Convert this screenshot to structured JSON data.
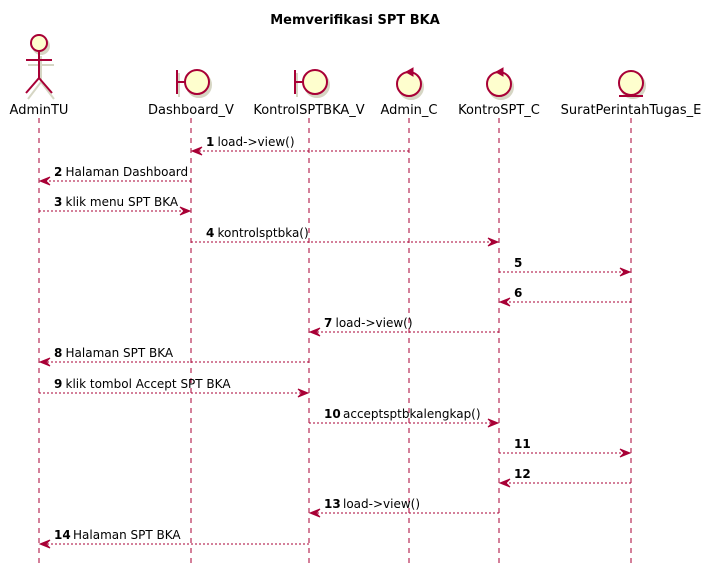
{
  "diagram": {
    "title": "Memverifikasi SPT BKA",
    "participants": [
      {
        "id": "AdminTU",
        "label": "AdminTU",
        "kind": "actor"
      },
      {
        "id": "Dashboard_V",
        "label": "Dashboard_V",
        "kind": "boundary"
      },
      {
        "id": "KontrolSPTBKA_V",
        "label": "KontrolSPTBKA_V",
        "kind": "boundary"
      },
      {
        "id": "Admin_C",
        "label": "Admin_C",
        "kind": "control"
      },
      {
        "id": "KontroSPT_C",
        "label": "KontroSPT_C",
        "kind": "control"
      },
      {
        "id": "SuratPerintahTugas_E",
        "label": "SuratPerintahTugas_E",
        "kind": "entity"
      }
    ],
    "messages": [
      {
        "num": "1",
        "text": "load->view()",
        "from": "Admin_C",
        "to": "Dashboard_V"
      },
      {
        "num": "2",
        "text": "Halaman Dashboard",
        "from": "Dashboard_V",
        "to": "AdminTU"
      },
      {
        "num": "3",
        "text": "klik menu SPT BKA",
        "from": "AdminTU",
        "to": "Dashboard_V"
      },
      {
        "num": "4",
        "text": "kontrolsptbka()",
        "from": "Dashboard_V",
        "to": "KontroSPT_C"
      },
      {
        "num": "5",
        "text": "",
        "from": "KontroSPT_C",
        "to": "SuratPerintahTugas_E"
      },
      {
        "num": "6",
        "text": "",
        "from": "SuratPerintahTugas_E",
        "to": "KontroSPT_C"
      },
      {
        "num": "7",
        "text": "load->view()",
        "from": "KontroSPT_C",
        "to": "KontrolSPTBKA_V"
      },
      {
        "num": "8",
        "text": "Halaman SPT BKA",
        "from": "KontrolSPTBKA_V",
        "to": "AdminTU"
      },
      {
        "num": "9",
        "text": "klik tombol Accept SPT BKA",
        "from": "AdminTU",
        "to": "KontrolSPTBKA_V"
      },
      {
        "num": "10",
        "text": "acceptsptbkalengkap()",
        "from": "KontrolSPTBKA_V",
        "to": "KontroSPT_C"
      },
      {
        "num": "11",
        "text": "",
        "from": "KontroSPT_C",
        "to": "SuratPerintahTugas_E"
      },
      {
        "num": "12",
        "text": "",
        "from": "SuratPerintahTugas_E",
        "to": "KontroSPT_C"
      },
      {
        "num": "13",
        "text": "load->view()",
        "from": "KontroSPT_C",
        "to": "KontrolSPTBKA_V"
      },
      {
        "num": "14",
        "text": "Halaman SPT BKA",
        "from": "KontrolSPTBKA_V",
        "to": "AdminTU"
      }
    ]
  }
}
